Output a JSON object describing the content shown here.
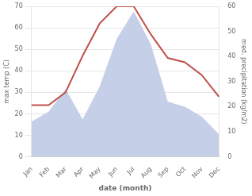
{
  "chart_data": {
    "type": "line",
    "xlabel": "date (month)",
    "ylabel": "max temp (C)",
    "y2label": "med. precipitation (kg/m2)",
    "categories": [
      "Jan",
      "Feb",
      "Mar",
      "Apr",
      "May",
      "Jun",
      "Jul",
      "Aug",
      "Sep",
      "Oct",
      "Nov",
      "Dec"
    ],
    "series": [
      {
        "type": "area",
        "axis": "y2",
        "color": "#c5cfe8",
        "values": [
          14,
          18,
          27,
          15,
          28,
          47,
          58,
          45,
          22,
          20,
          16,
          9
        ]
      },
      {
        "type": "line",
        "axis": "y",
        "color": "#c0504d",
        "values": [
          24,
          24,
          30,
          47,
          62,
          70,
          70,
          57,
          46,
          44,
          38,
          28
        ]
      }
    ],
    "ylim": [
      0,
      70
    ],
    "yticks": [
      0,
      10,
      20,
      30,
      40,
      50,
      60,
      70
    ],
    "y2lim": [
      0,
      60
    ],
    "y2ticks": [
      0,
      10,
      20,
      30,
      40,
      50,
      60
    ],
    "grid": true
  }
}
